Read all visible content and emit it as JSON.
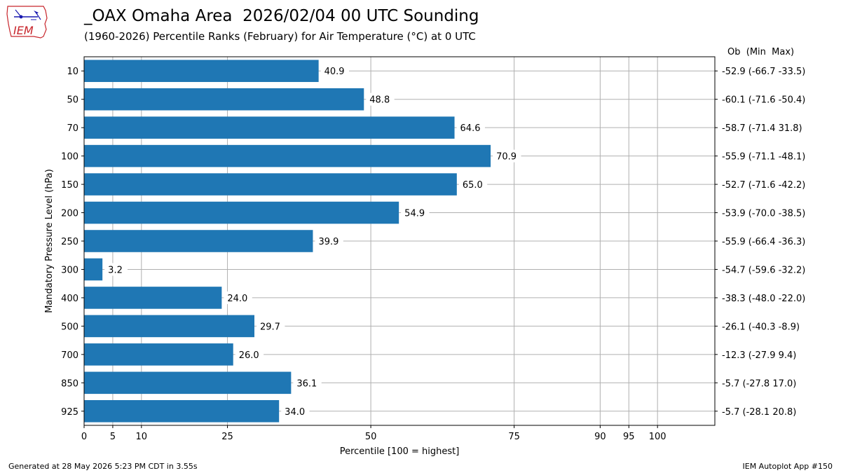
{
  "header": {
    "title": "_OAX Omaha Area  2026/02/04 00 UTC Sounding",
    "subtitle": "(1960-2026) Percentile Ranks (February) for Air Temperature (°C) at 0 UTC",
    "right_column_header": "Ob  (Min  Max)"
  },
  "logo": {
    "text": "IEM"
  },
  "footer": {
    "left": "Generated at 28 May 2026 5:23 PM CDT in 3.55s",
    "right": "IEM Autoplot App #150"
  },
  "colors": {
    "bar": "#1f77b4",
    "grid": "#b0b0b0"
  },
  "chart_data": {
    "type": "bar",
    "orientation": "horizontal",
    "xlabel": "Percentile [100 = highest]",
    "ylabel": "Mandatory Pressure Level (hPa)",
    "xlim": [
      0,
      110
    ],
    "xticks": [
      0,
      5,
      10,
      25,
      50,
      75,
      90,
      95,
      100
    ],
    "grid": true,
    "categories": [
      "10",
      "50",
      "70",
      "100",
      "150",
      "200",
      "250",
      "300",
      "400",
      "500",
      "700",
      "850",
      "925"
    ],
    "values": [
      40.9,
      48.8,
      64.6,
      70.9,
      65.0,
      54.9,
      39.9,
      3.2,
      24.0,
      29.7,
      26.0,
      36.1,
      34.0
    ],
    "value_labels": [
      "40.9",
      "48.8",
      "64.6",
      "70.9",
      "65.0",
      "54.9",
      "39.9",
      "3.2",
      "24.0",
      "29.7",
      "26.0",
      "36.1",
      "34.0"
    ],
    "right_labels": [
      "-52.9 (-66.7 -33.5)",
      "-60.1 (-71.6 -50.4)",
      "-58.7 (-71.4 31.8)",
      "-55.9 (-71.1 -48.1)",
      "-52.7 (-71.6 -42.2)",
      "-53.9 (-70.0 -38.5)",
      "-55.9 (-66.4 -36.3)",
      "-54.7 (-59.6 -32.2)",
      "-38.3 (-48.0 -22.0)",
      "-26.1 (-40.3 -8.9)",
      "-12.3 (-27.9 9.4)",
      "-5.7 (-27.8 17.0)",
      "-5.7 (-28.1 20.8)"
    ]
  }
}
